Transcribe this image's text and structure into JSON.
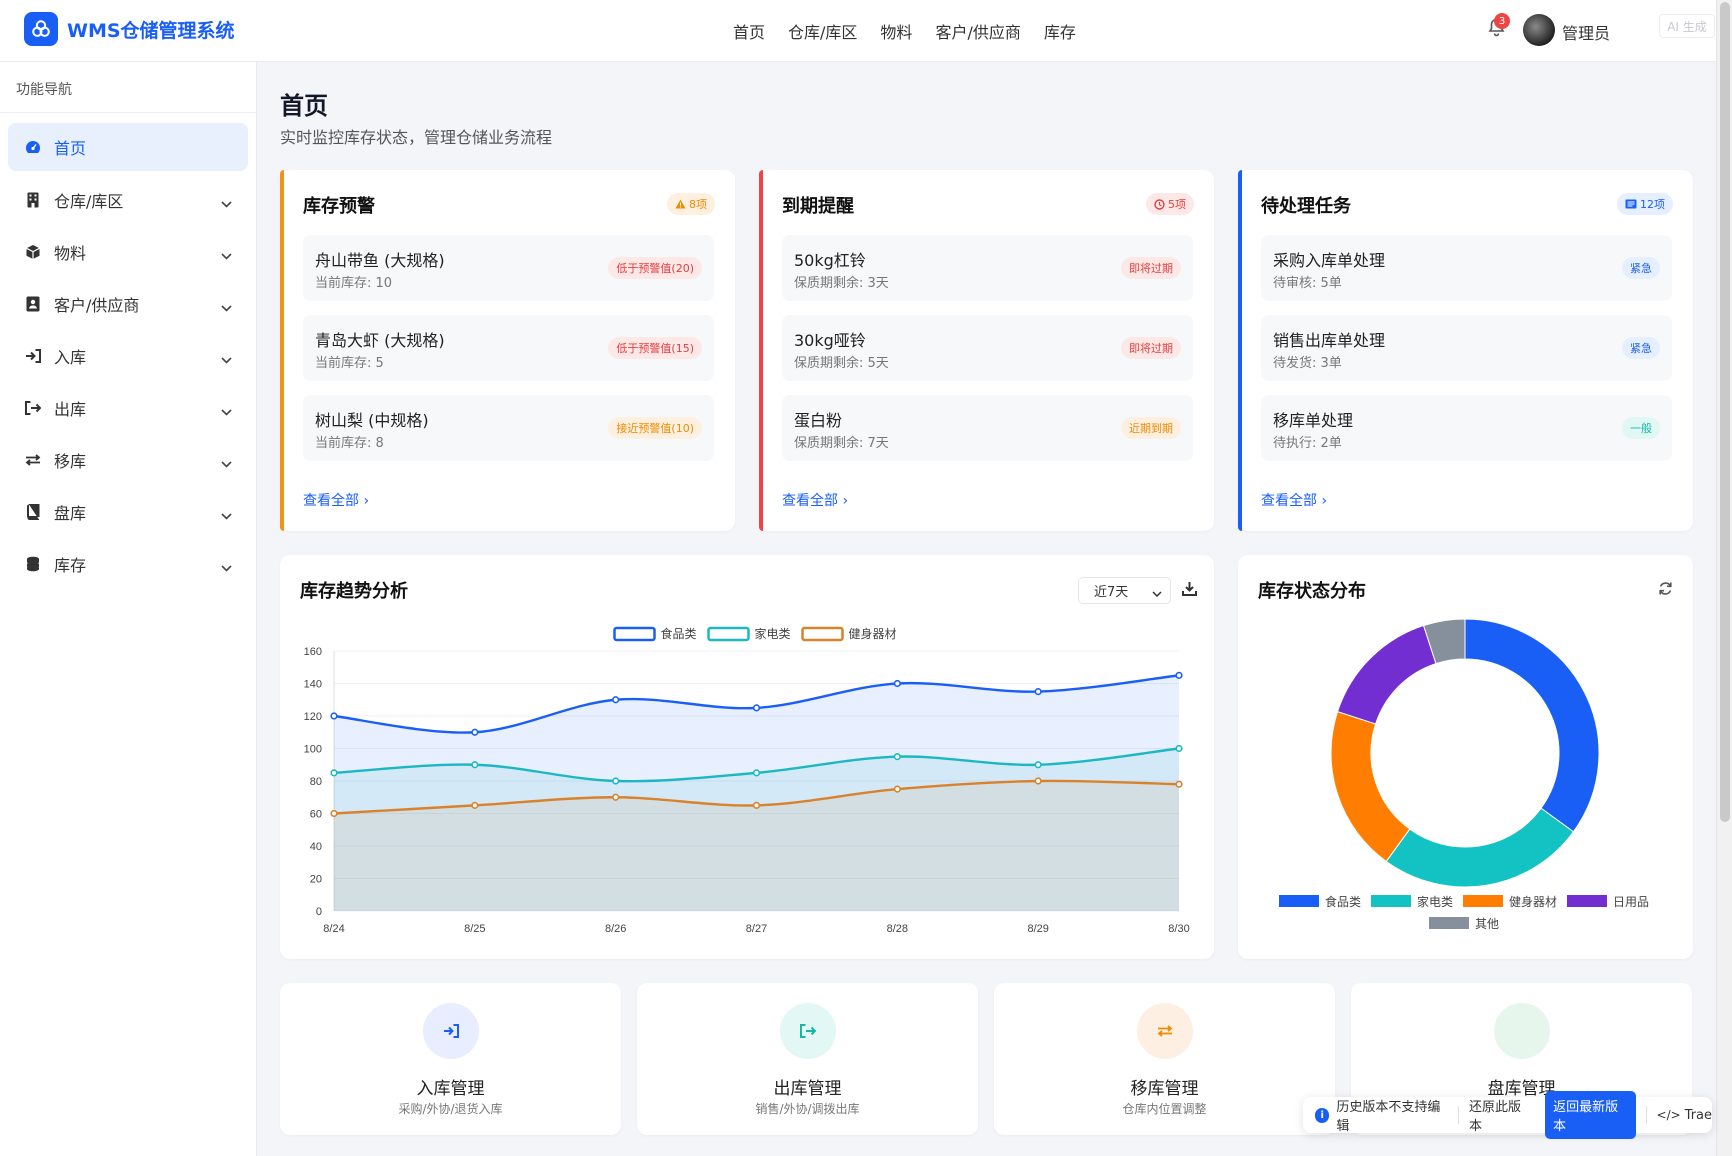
{
  "app": {
    "title": "WMS仓储管理系统"
  },
  "topnav": [
    "首页",
    "仓库/库区",
    "物料",
    "客户/供应商",
    "库存"
  ],
  "header": {
    "notification_count": "3",
    "user": "管理员",
    "ai_tag": "AI 生成"
  },
  "sidebar": {
    "title": "功能导航",
    "items": [
      {
        "label": "首页",
        "icon": "dashboard-icon",
        "active": true
      },
      {
        "label": "仓库/库区",
        "icon": "building-icon"
      },
      {
        "label": "物料",
        "icon": "cube-icon"
      },
      {
        "label": "客户/供应商",
        "icon": "contact-book-icon"
      },
      {
        "label": "入库",
        "icon": "sign-in-icon"
      },
      {
        "label": "出库",
        "icon": "sign-out-icon"
      },
      {
        "label": "移库",
        "icon": "exchange-icon"
      },
      {
        "label": "盘库",
        "icon": "book-icon"
      },
      {
        "label": "库存",
        "icon": "database-icon"
      }
    ]
  },
  "page": {
    "title": "首页",
    "subtitle": "实时监控库存状态，管理仓储业务流程"
  },
  "cards": {
    "stock_alert": {
      "title": "库存预警",
      "badge": "8项",
      "more": "查看全部",
      "items": [
        {
          "name": "舟山带鱼 (大规格)",
          "detail": "当前库存: 10",
          "tag": "低于预警值(20)"
        },
        {
          "name": "青岛大虾 (大规格)",
          "detail": "当前库存: 5",
          "tag": "低于预警值(15)"
        },
        {
          "name": "树山梨 (中规格)",
          "detail": "当前库存: 8",
          "tag": "接近预警值(10)"
        }
      ]
    },
    "expiry": {
      "title": "到期提醒",
      "badge": "5项",
      "more": "查看全部",
      "items": [
        {
          "name": "50kg杠铃",
          "detail": "保质期剩余: 3天",
          "tag": "即将过期"
        },
        {
          "name": "30kg哑铃",
          "detail": "保质期剩余: 5天",
          "tag": "即将过期"
        },
        {
          "name": "蛋白粉",
          "detail": "保质期剩余: 7天",
          "tag": "近期到期"
        }
      ]
    },
    "tasks": {
      "title": "待处理任务",
      "badge": "12项",
      "more": "查看全部",
      "items": [
        {
          "name": "采购入库单处理",
          "detail": "待审核: 5单",
          "tag": "紧急"
        },
        {
          "name": "销售出库单处理",
          "detail": "待发货: 3单",
          "tag": "紧急"
        },
        {
          "name": "移库单处理",
          "detail": "待执行: 2单",
          "tag": "一般"
        }
      ]
    }
  },
  "trend": {
    "title": "库存趋势分析",
    "range": "近7天"
  },
  "distribution": {
    "title": "库存状态分布"
  },
  "chart_data": [
    {
      "type": "area",
      "x": [
        "8/24",
        "8/25",
        "8/26",
        "8/27",
        "8/28",
        "8/29",
        "8/30"
      ],
      "series": [
        {
          "name": "食品类",
          "values": [
            120,
            110,
            130,
            125,
            140,
            135,
            145
          ],
          "color": "#1a5ff5"
        },
        {
          "name": "家电类",
          "values": [
            85,
            90,
            80,
            85,
            95,
            90,
            100
          ],
          "color": "#1bb8c4"
        },
        {
          "name": "健身器材",
          "values": [
            60,
            65,
            70,
            65,
            75,
            80,
            78
          ],
          "color": "#d9822b"
        }
      ],
      "ylim": [
        0,
        160
      ],
      "yticks": [
        0,
        20,
        40,
        60,
        80,
        100,
        120,
        140,
        160
      ],
      "legend": "top"
    },
    {
      "type": "pie",
      "categories": [
        "食品类",
        "家电类",
        "健身器材",
        "日用品",
        "其他"
      ],
      "values": [
        35,
        25,
        20,
        15,
        5
      ],
      "colors": [
        "#1a5ff5",
        "#13c2c2",
        "#ff7d00",
        "#722ed1",
        "#86909c"
      ],
      "legend": "bottom"
    }
  ],
  "modules": [
    {
      "title": "入库管理",
      "sub": "采购/外协/退货入库",
      "icon": "sign-in-icon",
      "bg": "#e8eeff",
      "color": "#1a5ff5"
    },
    {
      "title": "出库管理",
      "sub": "销售/外协/调拨出库",
      "icon": "sign-out-icon",
      "bg": "#e3f7f5",
      "color": "#14b8a6"
    },
    {
      "title": "移库管理",
      "sub": "仓库内位置调整",
      "icon": "exchange-icon",
      "bg": "#fdf0e3",
      "color": "#f08c00"
    },
    {
      "title": "盘库管理",
      "sub": "",
      "icon": "book-icon",
      "bg": "#e6f6ec",
      "color": "#22c55e"
    }
  ],
  "history_bar": {
    "notice": "历史版本不支持编辑",
    "restore": "还原此版本",
    "latest": "返回最新版本",
    "brand": "Trae"
  }
}
